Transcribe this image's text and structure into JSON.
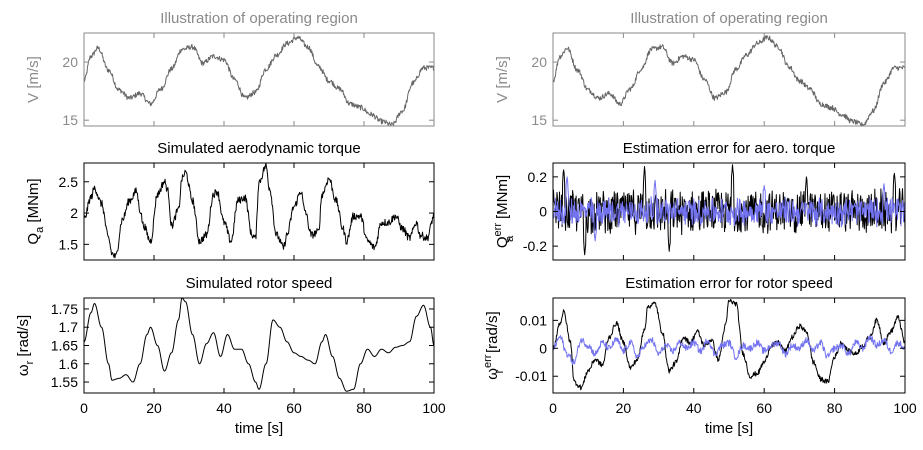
{
  "colors": {
    "gray": "#666666",
    "gray_text": "#8a8a8a",
    "black": "#000000",
    "blue": "#7373f0"
  },
  "chart_data": [
    {
      "type": "line",
      "panel": "wind_left",
      "title": "Illustration of operating region",
      "ylabel": "V [m/s]",
      "xlabel": "",
      "xlim": [
        0,
        100
      ],
      "ylim": [
        14.5,
        22.5
      ],
      "yticks": [
        "15",
        "20"
      ],
      "xticks": [],
      "series": [
        {
          "color": "gray",
          "x": [
            0,
            2,
            4,
            7,
            10,
            13,
            16,
            19,
            22,
            25,
            28,
            31,
            34,
            37,
            40,
            43,
            46,
            49,
            52,
            55,
            58,
            61,
            64,
            67,
            70,
            73,
            76,
            79,
            82,
            85,
            88,
            91,
            94,
            97,
            100
          ],
          "y": [
            18.4,
            20.5,
            21.2,
            19.3,
            17.6,
            16.9,
            17.3,
            16.4,
            17.7,
            19.4,
            21.1,
            21.3,
            19.9,
            20.5,
            20.2,
            18.5,
            16.9,
            17.4,
            19.4,
            20.6,
            21.6,
            22.1,
            21.3,
            19.6,
            18.4,
            17.7,
            16.4,
            16.1,
            15.5,
            14.9,
            14.6,
            15.8,
            18.2,
            19.5,
            19.5
          ]
        }
      ]
    },
    {
      "type": "line",
      "panel": "wind_right",
      "title": "Illustration of operating region",
      "ylabel": "V [m/s]",
      "xlabel": "",
      "xlim": [
        0,
        100
      ],
      "ylim": [
        14.5,
        22.5
      ],
      "yticks": [
        "15",
        "20"
      ],
      "xticks": [],
      "series": [
        {
          "color": "gray",
          "x": [
            0,
            2,
            4,
            7,
            10,
            13,
            16,
            19,
            22,
            25,
            28,
            31,
            34,
            37,
            40,
            43,
            46,
            49,
            52,
            55,
            58,
            61,
            64,
            67,
            70,
            73,
            76,
            79,
            82,
            85,
            88,
            91,
            94,
            97,
            100
          ],
          "y": [
            18.4,
            20.5,
            21.2,
            19.3,
            17.6,
            16.9,
            17.3,
            16.4,
            17.7,
            19.4,
            21.1,
            21.3,
            19.9,
            20.5,
            20.2,
            18.5,
            16.9,
            17.4,
            19.4,
            20.6,
            21.6,
            22.1,
            21.3,
            19.6,
            18.4,
            17.7,
            16.4,
            16.1,
            15.5,
            14.9,
            14.6,
            15.8,
            18.2,
            19.5,
            19.5
          ]
        }
      ]
    },
    {
      "type": "line",
      "panel": "torque",
      "title": "Simulated aerodynamic torque",
      "ylabel": "Q",
      "ylabel_sub": "a",
      "ylabel_unit": " [MNm]",
      "xlabel": "",
      "xlim": [
        0,
        100
      ],
      "ylim": [
        1.25,
        2.8
      ],
      "yticks": [
        "1.5",
        "2",
        "2.5"
      ],
      "xticks": [],
      "series": [
        {
          "color": "black",
          "x": [
            0,
            2,
            3,
            5,
            7,
            8,
            9,
            11,
            13,
            15,
            16,
            17,
            19,
            21,
            23,
            24,
            25,
            27,
            28,
            29,
            31,
            33,
            35,
            37,
            38,
            40,
            42,
            44,
            46,
            48,
            49,
            50,
            52,
            53,
            55,
            57,
            58,
            60,
            62,
            63,
            65,
            67,
            68,
            70,
            72,
            74,
            75,
            77,
            79,
            81,
            83,
            85,
            87,
            89,
            91,
            93,
            95,
            96,
            98,
            100
          ],
          "y": [
            1.9,
            2.25,
            2.4,
            2.15,
            1.6,
            1.35,
            1.3,
            1.9,
            2.2,
            2.35,
            2.05,
            1.8,
            1.55,
            2.3,
            2.5,
            2.35,
            1.8,
            2.05,
            2.55,
            2.65,
            2.2,
            1.55,
            1.65,
            2.3,
            2.35,
            1.85,
            1.55,
            2.2,
            2.25,
            1.65,
            1.6,
            2.5,
            2.75,
            2.4,
            1.65,
            1.45,
            1.65,
            2.1,
            2.35,
            2.05,
            1.65,
            1.7,
            2.3,
            2.55,
            2.2,
            1.75,
            1.55,
            1.95,
            1.95,
            1.55,
            1.45,
            1.85,
            1.85,
            1.95,
            1.75,
            1.6,
            1.85,
            1.65,
            1.6,
            1.95
          ]
        }
      ]
    },
    {
      "type": "line",
      "panel": "torque_err",
      "title": "Estimation error for aero. torque",
      "ylabel": "Q",
      "ylabel_sub": "a",
      "ylabel_sup": "err",
      "ylabel_unit": " [MNm]",
      "xlabel": "",
      "xlim": [
        0,
        100
      ],
      "ylim": [
        -0.28,
        0.28
      ],
      "yticks": [
        "-0.2",
        "0",
        "0.2"
      ],
      "xticks": [],
      "series": [
        {
          "color": "black",
          "amplitude": 0.14,
          "peak_x": [
            3,
            9,
            26,
            33,
            51,
            72,
            97
          ],
          "peak_y": [
            0.24,
            -0.25,
            0.26,
            -0.23,
            0.27,
            0.2,
            0.22
          ]
        },
        {
          "color": "blue",
          "amplitude": 0.09,
          "peak_x": [
            4,
            12,
            29,
            60,
            94
          ],
          "peak_y": [
            0.2,
            -0.17,
            0.18,
            0.15,
            0.16
          ]
        }
      ]
    },
    {
      "type": "line",
      "panel": "speed",
      "title": "Simulated rotor speed",
      "ylabel": "ω",
      "ylabel_sub": "r",
      "ylabel_unit": " [rad/s]",
      "xlabel": "time [s]",
      "xlim": [
        0,
        100
      ],
      "ylim": [
        1.52,
        1.78
      ],
      "yticks": [
        "1.55",
        "1.6",
        "1.65",
        "1.7",
        "1.75"
      ],
      "xticks": [
        "0",
        "20",
        "40",
        "60",
        "80",
        "100"
      ],
      "series": [
        {
          "color": "black",
          "x": [
            0,
            2,
            3,
            5,
            7,
            8,
            10,
            12,
            14,
            16,
            18,
            19,
            21,
            23,
            25,
            27,
            28,
            29,
            31,
            33,
            35,
            37,
            39,
            41,
            43,
            45,
            47,
            49,
            50,
            52,
            54,
            56,
            58,
            60,
            62,
            64,
            66,
            68,
            69,
            71,
            73,
            75,
            77,
            79,
            81,
            83,
            85,
            87,
            89,
            91,
            93,
            95,
            97,
            99,
            100
          ],
          "y": [
            1.66,
            1.74,
            1.765,
            1.7,
            1.6,
            1.555,
            1.56,
            1.57,
            1.55,
            1.6,
            1.68,
            1.7,
            1.65,
            1.58,
            1.63,
            1.72,
            1.78,
            1.77,
            1.68,
            1.6,
            1.655,
            1.685,
            1.62,
            1.68,
            1.64,
            1.64,
            1.6,
            1.55,
            1.53,
            1.6,
            1.72,
            1.7,
            1.66,
            1.63,
            1.62,
            1.61,
            1.6,
            1.66,
            1.68,
            1.62,
            1.56,
            1.525,
            1.53,
            1.6,
            1.64,
            1.62,
            1.64,
            1.63,
            1.645,
            1.65,
            1.66,
            1.73,
            1.76,
            1.7,
            1.65
          ]
        }
      ]
    },
    {
      "type": "line",
      "panel": "speed_err",
      "title": "Estimation error for rotor speed",
      "ylabel": "ω",
      "ylabel_sub": "r",
      "ylabel_sup": "err",
      "ylabel_unit": " [rad/s]",
      "xlabel": "time [s]",
      "xlim": [
        0,
        100
      ],
      "ylim": [
        -0.016,
        0.018
      ],
      "yticks": [
        "-0.01",
        "0",
        "0.01"
      ],
      "xticks": [
        "0",
        "20",
        "40",
        "60",
        "80",
        "100"
      ],
      "series": [
        {
          "color": "black",
          "x": [
            0,
            2,
            3,
            5,
            6,
            8,
            10,
            12,
            14,
            16,
            18,
            20,
            22,
            24,
            26,
            27,
            29,
            31,
            33,
            35,
            37,
            39,
            41,
            43,
            45,
            47,
            49,
            50,
            52,
            54,
            56,
            58,
            60,
            62,
            64,
            66,
            68,
            70,
            72,
            74,
            76,
            78,
            80,
            82,
            84,
            86,
            88,
            90,
            92,
            94,
            96,
            98,
            100
          ],
          "y": [
            0,
            0.009,
            0.013,
            0.002,
            -0.012,
            -0.014,
            -0.008,
            -0.004,
            -0.006,
            0.004,
            0.009,
            0.002,
            -0.007,
            -0.004,
            0.007,
            0.015,
            0.016,
            0.006,
            -0.008,
            -0.005,
            0.004,
            0.002,
            0.006,
            0.001,
            0.003,
            -0.004,
            0.008,
            0.017,
            0.016,
            -0.002,
            -0.01,
            -0.009,
            -0.005,
            0.001,
            0.002,
            -0.001,
            0.004,
            0.008,
            0.006,
            -0.005,
            -0.011,
            -0.012,
            -0.003,
            0.002,
            -0.001,
            -0.002,
            0.001,
            0.004,
            0.01,
            0.002,
            0.006,
            0.011,
            0.002
          ]
        },
        {
          "color": "blue",
          "x": [
            0,
            2,
            4,
            6,
            8,
            10,
            12,
            14,
            16,
            18,
            20,
            22,
            24,
            26,
            28,
            30,
            32,
            34,
            36,
            38,
            40,
            42,
            44,
            46,
            48,
            50,
            52,
            54,
            56,
            58,
            60,
            62,
            64,
            66,
            68,
            70,
            72,
            74,
            76,
            78,
            80,
            82,
            84,
            86,
            88,
            90,
            92,
            94,
            96,
            98,
            100
          ],
          "y": [
            0,
            0.004,
            -0.002,
            -0.005,
            0.003,
            0.001,
            -0.002,
            0.002,
            0,
            0.003,
            -0.001,
            0.002,
            -0.003,
            0.001,
            0.003,
            -0.002,
            0.001,
            -0.001,
            0.002,
            0,
            0.002,
            -0.001,
            0.003,
            -0.002,
            0.001,
            0.002,
            -0.003,
            0.001,
            0,
            0.002,
            -0.001,
            0.001,
            0.002,
            -0.002,
            0.001,
            0,
            0.003,
            -0.001,
            0.002,
            -0.003,
            0,
            0.001,
            -0.002,
            0.002,
            0,
            0.004,
            0.001,
            0.003,
            -0.001,
            0.002,
            0
          ]
        }
      ]
    }
  ]
}
